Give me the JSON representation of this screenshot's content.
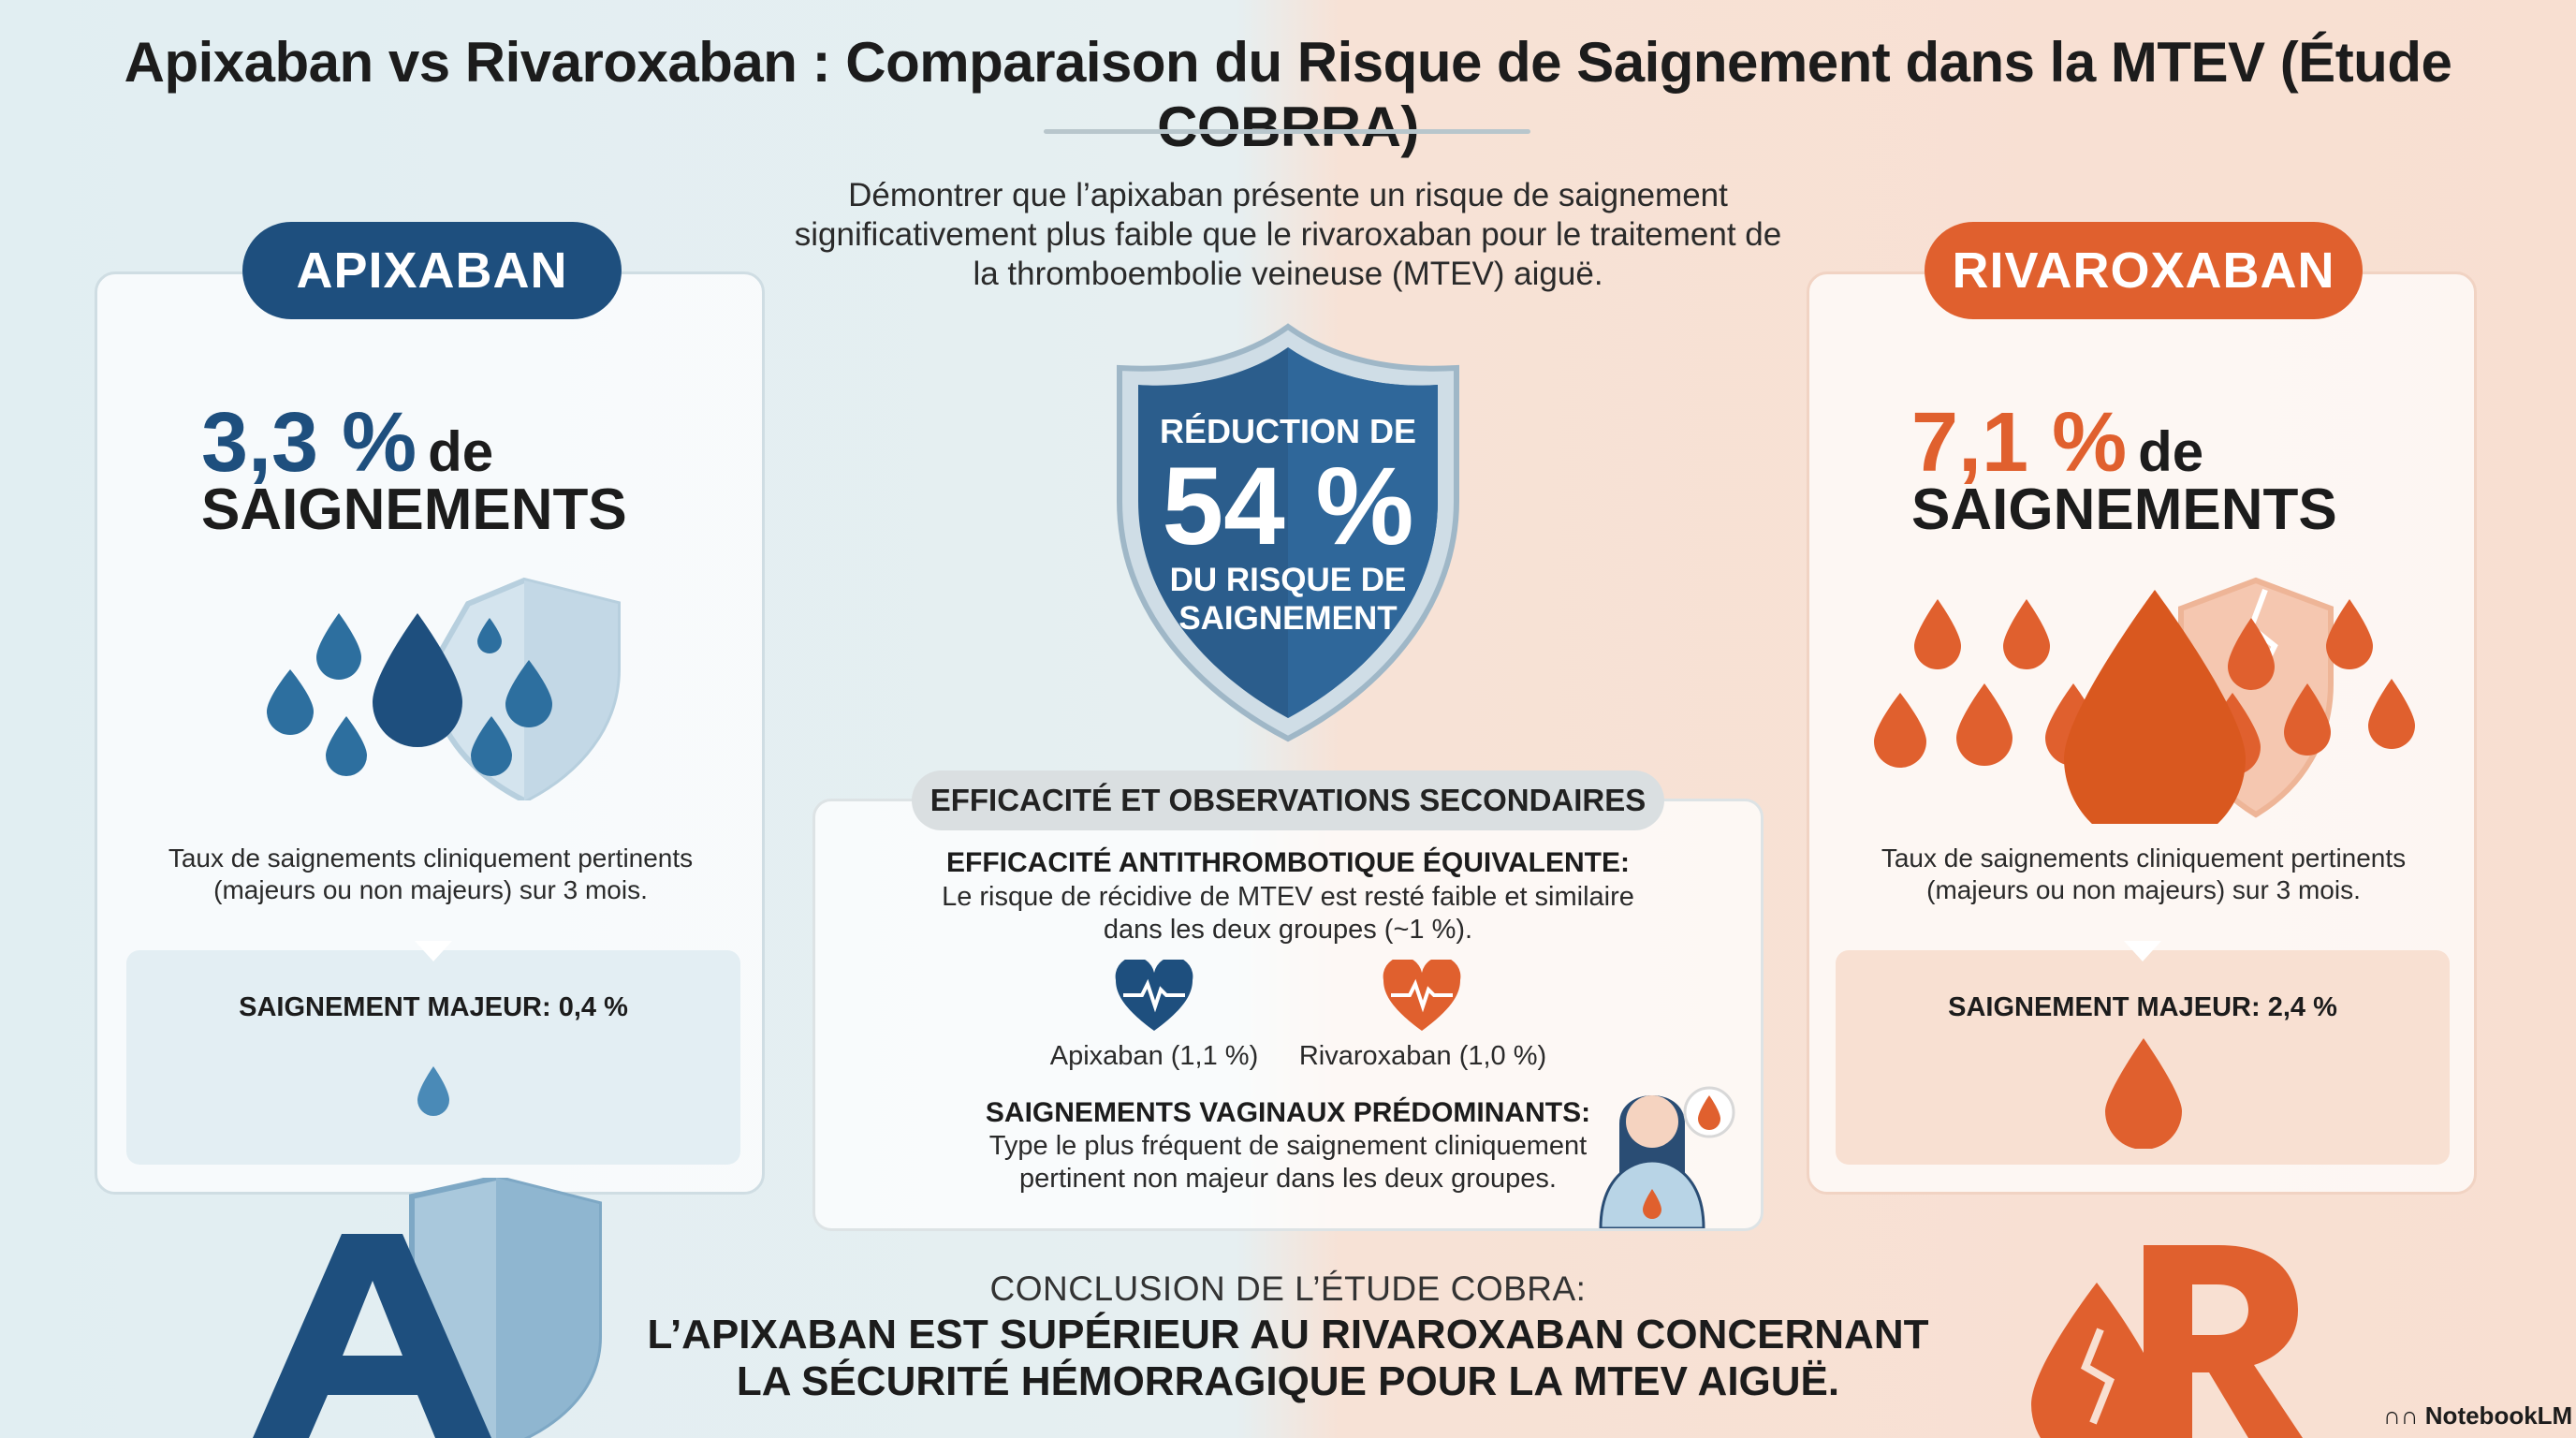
{
  "title": "Apixaban vs Rivaroxaban : Comparaison du Risque de Saignement dans la MTEV (Étude COBRRA)",
  "objective": "Démontrer que l’apixaban présente un risque de saignement significativement plus faible que le rivaroxaban pour le traitement de la thromboembolie veineuse (MTEV) aiguë.",
  "colors": {
    "apixaban": "#1e4f7e",
    "rivaroxaban": "#e0602e",
    "bg_left": "#e1eef2",
    "bg_right": "#f8dfd1"
  },
  "apixaban": {
    "label": "APIXABAN",
    "rate": "3,3 %",
    "rate_de": "de",
    "rate_unit": "SAIGNEMENTS",
    "description": "Taux de saignements cliniquement pertinents (majeurs ou non majeurs) sur 3 mois.",
    "major": "SAIGNEMENT MAJEUR: 0,4 %",
    "icon": "blue-drops-shield-icon",
    "logo_letter": "A"
  },
  "rivaroxaban": {
    "label": "RIVAROXABAN",
    "rate": "7,1 %",
    "rate_de": "de",
    "rate_unit": "SAIGNEMENTS",
    "description": "Taux de saignements cliniquement pertinents (majeurs ou non majeurs) sur 3 mois.",
    "major": "SAIGNEMENT MAJEUR: 2,4 %",
    "icon": "orange-drops-cracked-shield-icon",
    "logo_letter": "R"
  },
  "shield": {
    "line1": "RÉDUCTION DE",
    "value": "54 %",
    "line2": "DU RISQUE DE",
    "line3": "SAIGNEMENT"
  },
  "secondary": {
    "title": "EFFICACITÉ ET OBSERVATIONS SECONDAIRES",
    "efficacy_head": "EFFICACITÉ ANTITHROMBOTIQUE ÉQUIVALENTE:",
    "efficacy_line1": "Le risque de récidive de MTEV est resté faible et similaire",
    "efficacy_line2": "dans les deux groupes (~1 %).",
    "apixaban_recurrence": "Apixaban (1,1 %)",
    "rivaroxaban_recurrence": "Rivaroxaban (1,0 %)",
    "vaginal_head": "SAIGNEMENTS VAGINAUX PRÉDOMINANTS:",
    "vaginal_line1": "Type le plus fréquent de saignement cliniquement",
    "vaginal_line2": "pertinent non majeur dans les deux groupes."
  },
  "conclusion": {
    "label": "CONCLUSION DE L’ÉTUDE COBRA:",
    "line1": "L’APIXABAN EST SUPÉRIEUR AU RIVAROXABAN CONCERNANT",
    "line2": "LA SÉCURITÉ HÉMORRAGIQUE POUR LA MTEV AIGUË."
  },
  "watermark": "NotebookLM"
}
